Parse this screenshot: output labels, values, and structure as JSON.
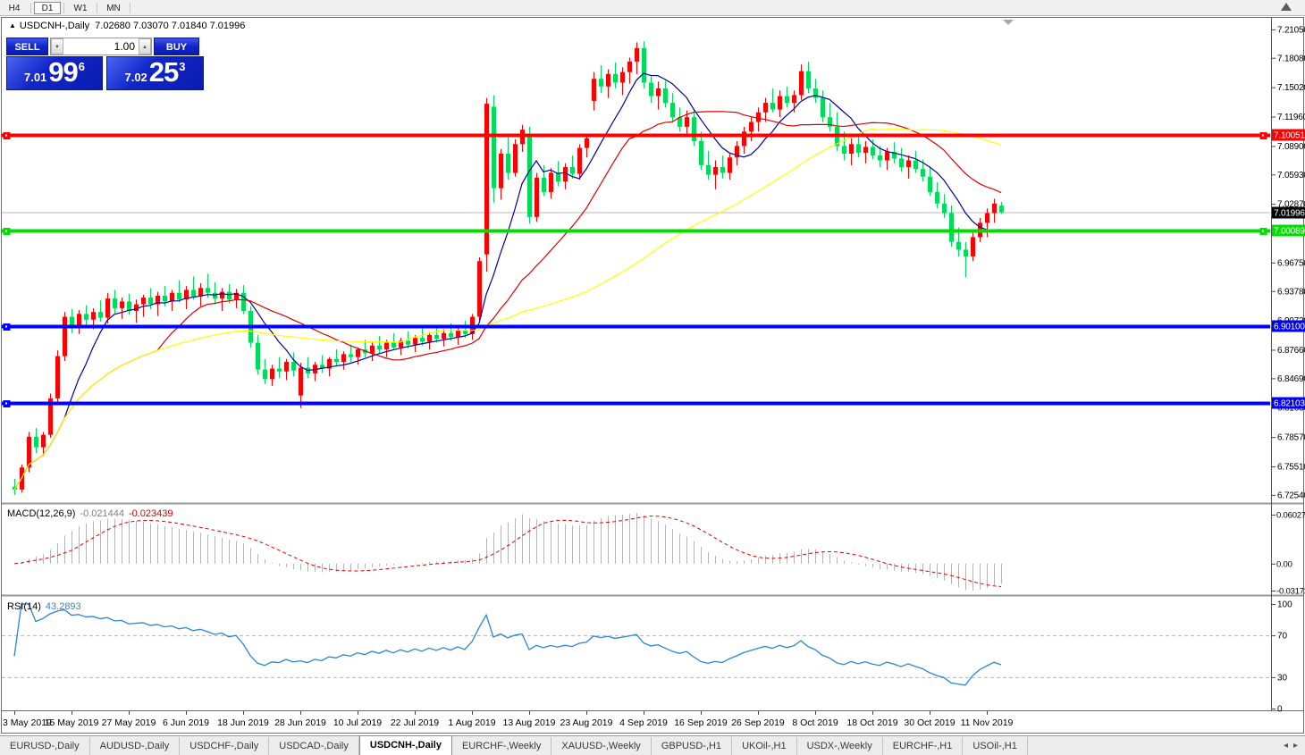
{
  "toolbar": {
    "timeframes": [
      "H4",
      "D1",
      "W1",
      "MN"
    ],
    "active": "D1"
  },
  "header": {
    "collapse_icon": "▲",
    "title": "USDCNH-,Daily",
    "ohlc_text": "7.02680 7.03070 7.01840 7.01996"
  },
  "trade_panel": {
    "sell_label": "SELL",
    "buy_label": "BUY",
    "volume": "1.00",
    "sell_price_prefix": "7.01",
    "sell_price_big": "99",
    "sell_price_sup": "6",
    "buy_price_prefix": "7.02",
    "buy_price_big": "25",
    "buy_price_sup": "3"
  },
  "tabs": {
    "items": [
      "EURUSD-,Daily",
      "AUDUSD-,Daily",
      "USDCHF-,Daily",
      "USDCAD-,Daily",
      "USDCNH-,Daily",
      "EURCHF-,Weekly",
      "XAUUSD-,Weekly",
      "GBPUSD-,H1",
      "UKOil-,H1",
      "USDX-,Weekly",
      "EURCHF-,H1",
      "USOil-,H1"
    ],
    "active_index": 4,
    "left_arrow": "◂",
    "right_arrow": "▸"
  },
  "chart_data": {
    "type": "candlestick",
    "symbol": "USDCNH-",
    "timeframe": "Daily",
    "colors": {
      "bull": "#ff0000",
      "bear": "#00dc5a"
    },
    "price_axis": {
      "ticks": [
        "7.21050",
        "7.18080",
        "7.15020",
        "7.11960",
        "7.08900",
        "7.05930",
        "7.02870",
        "6.99820",
        "6.96750",
        "6.93780",
        "6.90720",
        "6.87660",
        "6.84690",
        "6.81630",
        "6.78570",
        "6.75510",
        "6.72540"
      ]
    },
    "current_price": {
      "value": 7.01996,
      "label": "7.01996"
    },
    "hlines": [
      {
        "price": 7.10051,
        "label": "7.10051",
        "color": "#ff0000",
        "anchors": "both"
      },
      {
        "price": 7.00089,
        "label": "7.00089",
        "color": "#00dd00",
        "anchors": "both"
      },
      {
        "price": 6.901,
        "label": "6.90100",
        "color": "#0000ff",
        "anchors": "left"
      },
      {
        "price": 6.82103,
        "label": "6.82103",
        "color": "#0000ff",
        "anchors": "left"
      }
    ],
    "ma": [
      {
        "period": 8,
        "color": "#000099"
      },
      {
        "period": 21,
        "color": "#dd0000"
      },
      {
        "period": 55,
        "color": "#ffff00"
      }
    ],
    "macd": {
      "label": "MACD(12,26,9)",
      "fast": 12,
      "slow": 26,
      "signal": 9,
      "value1": "-0.021444",
      "value2": "-0.023439",
      "hist_color": "#b4b4b4",
      "signal_color": "#e00000",
      "axis_labels": [
        "0.060273",
        "0.00",
        "-0.03172"
      ]
    },
    "rsi": {
      "label": "RSI(14)",
      "period": 14,
      "value": "43.2893",
      "color": "#2a85dd",
      "levels": [
        30,
        70
      ],
      "axis_labels": [
        "100",
        "70",
        "30",
        "0"
      ]
    },
    "x_labels": [
      {
        "i": 0,
        "t": "3 May 2019"
      },
      {
        "i": 8,
        "t": "15 May 2019"
      },
      {
        "i": 16,
        "t": "27 May 2019"
      },
      {
        "i": 24,
        "t": "6 Jun 2019"
      },
      {
        "i": 32,
        "t": "18 Jun 2019"
      },
      {
        "i": 40,
        "t": "28 Jun 2019"
      },
      {
        "i": 48,
        "t": "10 Jul 2019"
      },
      {
        "i": 56,
        "t": "22 Jul 2019"
      },
      {
        "i": 64,
        "t": "1 Aug 2019"
      },
      {
        "i": 72,
        "t": "13 Aug 2019"
      },
      {
        "i": 80,
        "t": "23 Aug 2019"
      },
      {
        "i": 88,
        "t": "4 Sep 2019"
      },
      {
        "i": 96,
        "t": "16 Sep 2019"
      },
      {
        "i": 104,
        "t": "26 Sep 2019"
      },
      {
        "i": 112,
        "t": "8 Oct 2019"
      },
      {
        "i": 120,
        "t": "18 Oct 2019"
      },
      {
        "i": 128,
        "t": "30 Oct 2019"
      },
      {
        "i": 136,
        "t": "11 Nov 2019"
      }
    ],
    "candles": [
      [
        6.734,
        6.742,
        6.7254,
        6.731
      ],
      [
        6.731,
        6.757,
        6.728,
        6.754
      ],
      [
        6.754,
        6.791,
        6.749,
        6.786
      ],
      [
        6.786,
        6.795,
        6.769,
        6.775
      ],
      [
        6.775,
        6.791,
        6.766,
        6.788
      ],
      [
        6.788,
        6.831,
        6.785,
        6.826
      ],
      [
        6.826,
        6.876,
        6.821,
        6.87
      ],
      [
        6.87,
        6.916,
        6.865,
        6.911
      ],
      [
        6.911,
        6.919,
        6.894,
        6.899
      ],
      [
        6.899,
        6.918,
        6.893,
        6.914
      ],
      [
        6.914,
        6.923,
        6.901,
        6.908
      ],
      [
        6.908,
        6.92,
        6.898,
        6.916
      ],
      [
        6.916,
        6.928,
        6.906,
        6.91
      ],
      [
        6.91,
        6.936,
        6.904,
        6.93
      ],
      [
        6.93,
        6.939,
        6.914,
        6.92
      ],
      [
        6.92,
        6.931,
        6.909,
        6.927
      ],
      [
        6.927,
        6.935,
        6.913,
        6.917
      ],
      [
        6.917,
        6.929,
        6.905,
        6.924
      ],
      [
        6.924,
        6.934,
        6.911,
        6.931
      ],
      [
        6.931,
        6.941,
        6.919,
        6.924
      ],
      [
        6.924,
        6.937,
        6.912,
        6.933
      ],
      [
        6.933,
        6.943,
        6.922,
        6.927
      ],
      [
        6.927,
        6.939,
        6.917,
        6.936
      ],
      [
        6.936,
        6.949,
        6.926,
        6.929
      ],
      [
        6.929,
        6.943,
        6.919,
        6.939
      ],
      [
        6.939,
        6.953,
        6.929,
        6.932
      ],
      [
        6.932,
        6.946,
        6.922,
        6.941
      ],
      [
        6.941,
        6.956,
        6.931,
        6.936
      ],
      [
        6.936,
        6.947,
        6.924,
        6.93
      ],
      [
        6.93,
        6.941,
        6.917,
        6.937
      ],
      [
        6.937,
        6.945,
        6.925,
        6.929
      ],
      [
        6.929,
        6.94,
        6.92,
        6.936
      ],
      [
        6.936,
        6.944,
        6.914,
        6.917
      ],
      [
        6.917,
        6.922,
        6.879,
        6.884
      ],
      [
        6.884,
        6.892,
        6.851,
        6.856
      ],
      [
        6.856,
        6.867,
        6.841,
        6.846
      ],
      [
        6.846,
        6.861,
        6.839,
        6.857
      ],
      [
        6.857,
        6.869,
        6.847,
        6.854
      ],
      [
        6.854,
        6.867,
        6.845,
        6.864
      ],
      [
        6.864,
        6.874,
        6.849,
        6.855
      ],
      [
        6.829,
        6.863,
        6.816,
        6.858
      ],
      [
        6.858,
        6.869,
        6.847,
        6.852
      ],
      [
        6.852,
        6.864,
        6.844,
        6.861
      ],
      [
        6.861,
        6.871,
        6.853,
        6.857
      ],
      [
        6.857,
        6.869,
        6.849,
        6.867
      ],
      [
        6.867,
        6.877,
        6.859,
        6.864
      ],
      [
        6.864,
        6.875,
        6.856,
        6.872
      ],
      [
        6.872,
        6.882,
        6.864,
        6.869
      ],
      [
        6.869,
        6.879,
        6.861,
        6.877
      ],
      [
        6.877,
        6.887,
        6.869,
        6.873
      ],
      [
        6.873,
        6.884,
        6.865,
        6.881
      ],
      [
        6.881,
        6.891,
        6.873,
        6.877
      ],
      [
        6.877,
        6.887,
        6.869,
        6.884
      ],
      [
        6.884,
        6.894,
        6.876,
        6.879
      ],
      [
        6.879,
        6.889,
        6.871,
        6.886
      ],
      [
        6.886,
        6.896,
        6.878,
        6.882
      ],
      [
        6.882,
        6.892,
        6.874,
        6.889
      ],
      [
        6.889,
        6.899,
        6.881,
        6.885
      ],
      [
        6.885,
        6.895,
        6.877,
        6.892
      ],
      [
        6.892,
        6.902,
        6.884,
        6.888
      ],
      [
        6.888,
        6.898,
        6.88,
        6.894
      ],
      [
        6.894,
        6.904,
        6.886,
        6.89
      ],
      [
        6.89,
        6.9,
        6.882,
        6.897
      ],
      [
        6.897,
        6.907,
        6.889,
        6.893
      ],
      [
        6.893,
        6.914,
        6.887,
        6.911
      ],
      [
        6.911,
        6.973,
        6.907,
        6.969
      ],
      [
        6.976,
        7.139,
        6.958,
        7.133
      ],
      [
        7.13,
        7.142,
        7.03,
        7.045
      ],
      [
        7.045,
        7.086,
        7.033,
        7.081
      ],
      [
        7.081,
        7.099,
        7.054,
        7.061
      ],
      [
        7.061,
        7.096,
        7.057,
        7.091
      ],
      [
        7.091,
        7.111,
        7.083,
        7.106
      ],
      [
        7.101,
        7.109,
        7.008,
        7.015
      ],
      [
        7.015,
        7.061,
        7.01,
        7.056
      ],
      [
        7.056,
        7.069,
        7.037,
        7.041
      ],
      [
        7.041,
        7.066,
        7.034,
        7.061
      ],
      [
        7.061,
        7.073,
        7.047,
        7.052
      ],
      [
        7.052,
        7.071,
        7.044,
        7.067
      ],
      [
        7.067,
        7.079,
        7.055,
        7.06
      ],
      [
        7.06,
        7.091,
        7.054,
        7.087
      ],
      [
        7.087,
        7.101,
        7.077,
        7.097
      ],
      [
        7.136,
        7.166,
        7.126,
        7.159
      ],
      [
        7.159,
        7.173,
        7.144,
        7.151
      ],
      [
        7.151,
        7.169,
        7.139,
        7.164
      ],
      [
        7.164,
        7.176,
        7.149,
        7.155
      ],
      [
        7.155,
        7.171,
        7.142,
        7.166
      ],
      [
        7.166,
        7.181,
        7.154,
        7.177
      ],
      [
        7.177,
        7.197,
        7.164,
        7.191
      ],
      [
        7.191,
        7.198,
        7.149,
        7.155
      ],
      [
        7.155,
        7.163,
        7.134,
        7.141
      ],
      [
        7.141,
        7.156,
        7.127,
        7.149
      ],
      [
        7.149,
        7.157,
        7.129,
        7.134
      ],
      [
        7.134,
        7.144,
        7.114,
        7.119
      ],
      [
        7.119,
        7.129,
        7.104,
        7.109
      ],
      [
        7.109,
        7.126,
        7.099,
        7.119
      ],
      [
        7.119,
        7.127,
        7.089,
        7.094
      ],
      [
        7.094,
        7.104,
        7.064,
        7.069
      ],
      [
        7.069,
        7.084,
        7.054,
        7.059
      ],
      [
        7.059,
        7.074,
        7.044,
        7.067
      ],
      [
        7.067,
        7.079,
        7.055,
        7.061
      ],
      [
        7.061,
        7.081,
        7.054,
        7.077
      ],
      [
        7.077,
        7.094,
        7.069,
        7.089
      ],
      [
        7.089,
        7.109,
        7.081,
        7.104
      ],
      [
        7.104,
        7.119,
        7.094,
        7.114
      ],
      [
        7.114,
        7.129,
        7.104,
        7.124
      ],
      [
        7.124,
        7.139,
        7.114,
        7.134
      ],
      [
        7.134,
        7.149,
        7.124,
        7.127
      ],
      [
        7.127,
        7.147,
        7.119,
        7.141
      ],
      [
        7.141,
        7.151,
        7.129,
        7.134
      ],
      [
        7.134,
        7.147,
        7.124,
        7.142
      ],
      [
        7.142,
        7.174,
        7.137,
        7.167
      ],
      [
        7.167,
        7.177,
        7.144,
        7.149
      ],
      [
        7.149,
        7.159,
        7.134,
        7.139
      ],
      [
        7.139,
        7.147,
        7.114,
        7.119
      ],
      [
        7.119,
        7.134,
        7.104,
        7.109
      ],
      [
        7.109,
        7.124,
        7.084,
        7.089
      ],
      [
        7.089,
        7.104,
        7.074,
        7.081
      ],
      [
        7.081,
        7.097,
        7.069,
        7.091
      ],
      [
        7.091,
        7.099,
        7.077,
        7.082
      ],
      [
        7.082,
        7.094,
        7.071,
        7.088
      ],
      [
        7.088,
        7.096,
        7.075,
        7.079
      ],
      [
        7.079,
        7.089,
        7.067,
        7.074
      ],
      [
        7.074,
        7.087,
        7.064,
        7.083
      ],
      [
        7.083,
        7.093,
        7.071,
        7.076
      ],
      [
        7.076,
        7.087,
        7.062,
        7.067
      ],
      [
        7.067,
        7.079,
        7.055,
        7.074
      ],
      [
        7.074,
        7.084,
        7.061,
        7.065
      ],
      [
        7.065,
        7.075,
        7.052,
        7.057
      ],
      [
        7.057,
        7.067,
        7.037,
        7.041
      ],
      [
        7.041,
        7.051,
        7.024,
        7.029
      ],
      [
        7.029,
        7.039,
        7.014,
        7.019
      ],
      [
        7.019,
        7.027,
        6.984,
        6.989
      ],
      [
        6.989,
        7.004,
        6.974,
        6.981
      ],
      [
        6.981,
        6.989,
        6.952,
        6.974
      ],
      [
        6.974,
        6.999,
        6.969,
        6.994
      ],
      [
        6.994,
        7.014,
        6.989,
        7.009
      ],
      [
        7.009,
        7.024,
        6.994,
        7.019
      ],
      [
        7.019,
        7.034,
        7.009,
        7.029
      ],
      [
        7.0268,
        7.0307,
        7.0184,
        7.02
      ]
    ]
  }
}
